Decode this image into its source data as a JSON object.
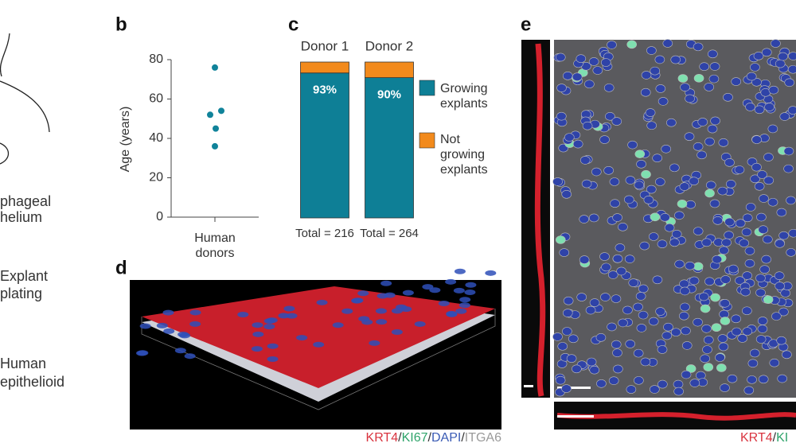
{
  "panel_a": {
    "lines": [
      "phageal",
      "helium",
      "Explant",
      "plating",
      "Human",
      "epithelioid"
    ]
  },
  "panel_labels": [
    "b",
    "c",
    "d",
    "e"
  ],
  "chart_data": [
    {
      "type": "scatter",
      "ylabel": "Age (years)",
      "categories": [
        "Human donors"
      ],
      "values": [
        [
          76,
          54,
          52,
          45,
          36
        ]
      ],
      "color": "#10839a",
      "ylim": [
        0,
        80
      ],
      "yticks": [
        0,
        20,
        40,
        60,
        80
      ]
    },
    {
      "type": "bar",
      "stacked": true,
      "categories": [
        "Donor 1",
        "Donor 2"
      ],
      "series": [
        {
          "name": "Growing explants",
          "color": "#0e7f96",
          "values": [
            93,
            90
          ],
          "value_labels": [
            "93%",
            "90%"
          ]
        },
        {
          "name": "Not growing explants",
          "color": "#f28a1c",
          "values": [
            7,
            10
          ]
        }
      ],
      "annotations": [
        "Total = 216",
        "Total = 264"
      ]
    }
  ],
  "panel_d": {
    "caption": [
      "KRT4",
      "KI67",
      "DAPI",
      "ITGA6"
    ],
    "caption_colors": [
      "#d9343f",
      "#2ea36a",
      "#3a5bb5",
      "#9a9a9a"
    ],
    "separator": "/"
  },
  "panel_e": {
    "caption": [
      "KRT4",
      "KI"
    ],
    "caption_colors": [
      "#d9343f",
      "#2ea36a"
    ],
    "separator": "/"
  }
}
